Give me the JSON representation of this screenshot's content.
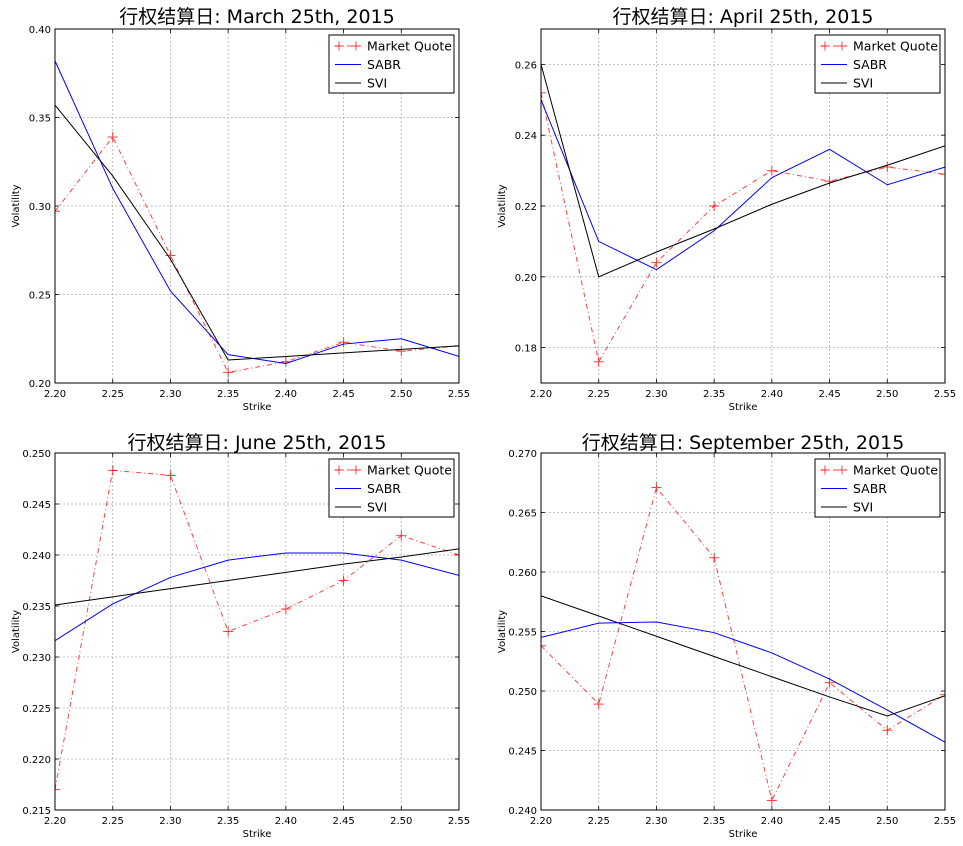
{
  "chart_data": [
    {
      "type": "line",
      "title": "行权结算日: March 25th, 2015",
      "xlabel": "Strike",
      "ylabel": "Volatility",
      "xlim": [
        2.2,
        2.55
      ],
      "ylim": [
        0.2,
        0.4
      ],
      "xticks": [
        "2.20",
        "2.25",
        "2.30",
        "2.35",
        "2.40",
        "2.45",
        "2.50",
        "2.55"
      ],
      "yticks": [
        "0.20",
        "0.25",
        "0.30",
        "0.35",
        "0.40"
      ],
      "grid": true,
      "legend_position": "top-right",
      "series": [
        {
          "name": "Market Quote",
          "color": "#ff0000",
          "style": "dashdot-plus",
          "x": [
            2.2,
            2.25,
            2.3,
            2.35,
            2.4,
            2.45,
            2.5,
            2.55
          ],
          "y": [
            0.297,
            0.339,
            0.272,
            0.206,
            0.212,
            0.223,
            0.218,
            0.221
          ]
        },
        {
          "name": "SABR",
          "color": "#0000ff",
          "style": "solid",
          "x": [
            2.2,
            2.25,
            2.3,
            2.35,
            2.4,
            2.45,
            2.5,
            2.55
          ],
          "y": [
            0.382,
            0.31,
            0.252,
            0.216,
            0.211,
            0.222,
            0.225,
            0.215
          ]
        },
        {
          "name": "SVI",
          "color": "#000000",
          "style": "solid",
          "x": [
            2.2,
            2.25,
            2.3,
            2.35,
            2.4,
            2.45,
            2.5,
            2.55
          ],
          "y": [
            0.357,
            0.317,
            0.27,
            0.213,
            0.215,
            0.217,
            0.219,
            0.221
          ]
        }
      ]
    },
    {
      "type": "line",
      "title": "行权结算日: April 25th, 2015",
      "xlabel": "Strike",
      "ylabel": "Volatility",
      "xlim": [
        2.2,
        2.55
      ],
      "ylim": [
        0.17,
        0.27
      ],
      "xticks": [
        "2.20",
        "2.25",
        "2.30",
        "2.35",
        "2.40",
        "2.45",
        "2.50",
        "2.55"
      ],
      "yticks": [
        "0.18",
        "0.20",
        "0.22",
        "0.24",
        "0.26"
      ],
      "grid": true,
      "legend_position": "top-right",
      "series": [
        {
          "name": "Market Quote",
          "color": "#ff0000",
          "style": "dashdot-plus",
          "x": [
            2.2,
            2.25,
            2.3,
            2.35,
            2.4,
            2.45,
            2.5,
            2.55
          ],
          "y": [
            0.252,
            0.176,
            0.204,
            0.22,
            0.23,
            0.227,
            0.231,
            0.229
          ]
        },
        {
          "name": "SABR",
          "color": "#0000ff",
          "style": "solid",
          "x": [
            2.2,
            2.25,
            2.3,
            2.35,
            2.4,
            2.45,
            2.5,
            2.55
          ],
          "y": [
            0.25,
            0.21,
            0.202,
            0.213,
            0.228,
            0.236,
            0.226,
            0.231
          ]
        },
        {
          "name": "SVI",
          "color": "#000000",
          "style": "solid",
          "x": [
            2.2,
            2.25,
            2.3,
            2.35,
            2.4,
            2.45,
            2.5,
            2.55
          ],
          "y": [
            0.26,
            0.2,
            0.207,
            0.2135,
            0.2205,
            0.2265,
            0.2315,
            0.237
          ]
        }
      ]
    },
    {
      "type": "line",
      "title": "行权结算日: June 25th, 2015",
      "xlabel": "Strike",
      "ylabel": "Volatility",
      "xlim": [
        2.2,
        2.55
      ],
      "ylim": [
        0.215,
        0.25
      ],
      "xticks": [
        "2.20",
        "2.25",
        "2.30",
        "2.35",
        "2.40",
        "2.45",
        "2.50",
        "2.55"
      ],
      "yticks": [
        "0.215",
        "0.220",
        "0.225",
        "0.230",
        "0.235",
        "0.240",
        "0.245",
        "0.250"
      ],
      "grid": true,
      "legend_position": "top-right",
      "series": [
        {
          "name": "Market Quote",
          "color": "#ff0000",
          "style": "dashdot-plus",
          "x": [
            2.2,
            2.25,
            2.3,
            2.35,
            2.4,
            2.45,
            2.5,
            2.55
          ],
          "y": [
            0.217,
            0.2483,
            0.2478,
            0.2325,
            0.2347,
            0.2375,
            0.2419,
            0.24
          ]
        },
        {
          "name": "SABR",
          "color": "#0000ff",
          "style": "solid",
          "x": [
            2.2,
            2.25,
            2.3,
            2.35,
            2.4,
            2.45,
            2.5,
            2.55
          ],
          "y": [
            0.2316,
            0.2352,
            0.2378,
            0.2395,
            0.2402,
            0.2402,
            0.2395,
            0.238
          ]
        },
        {
          "name": "SVI",
          "color": "#000000",
          "style": "solid",
          "x": [
            2.2,
            2.25,
            2.3,
            2.35,
            2.4,
            2.45,
            2.5,
            2.55
          ],
          "y": [
            0.2351,
            0.2359,
            0.2367,
            0.2375,
            0.2383,
            0.2391,
            0.2398,
            0.2406
          ]
        }
      ]
    },
    {
      "type": "line",
      "title": "行权结算日: September 25th, 2015",
      "xlabel": "Strike",
      "ylabel": "Volatility",
      "xlim": [
        2.2,
        2.55
      ],
      "ylim": [
        0.24,
        0.27
      ],
      "xticks": [
        "2.20",
        "2.25",
        "2.30",
        "2.35",
        "2.40",
        "2.45",
        "2.50",
        "2.55"
      ],
      "yticks": [
        "0.240",
        "0.245",
        "0.250",
        "0.255",
        "0.260",
        "0.265",
        "0.270"
      ],
      "grid": true,
      "legend_position": "top-right",
      "series": [
        {
          "name": "Market Quote",
          "color": "#ff0000",
          "style": "dashdot-plus",
          "x": [
            2.2,
            2.25,
            2.3,
            2.35,
            2.4,
            2.45,
            2.5,
            2.55
          ],
          "y": [
            0.2538,
            0.2489,
            0.2671,
            0.2612,
            0.2408,
            0.2507,
            0.2467,
            0.2497
          ]
        },
        {
          "name": "SABR",
          "color": "#0000ff",
          "style": "solid",
          "x": [
            2.2,
            2.25,
            2.3,
            2.35,
            2.4,
            2.45,
            2.5,
            2.55
          ],
          "y": [
            0.2545,
            0.2557,
            0.2558,
            0.2549,
            0.2532,
            0.251,
            0.2484,
            0.2457
          ]
        },
        {
          "name": "SVI",
          "color": "#000000",
          "style": "solid",
          "x": [
            2.2,
            2.25,
            2.3,
            2.35,
            2.4,
            2.45,
            2.5,
            2.55
          ],
          "y": [
            0.258,
            0.2563,
            0.2546,
            0.2529,
            0.2512,
            0.2495,
            0.2479,
            0.2496
          ]
        }
      ]
    }
  ]
}
